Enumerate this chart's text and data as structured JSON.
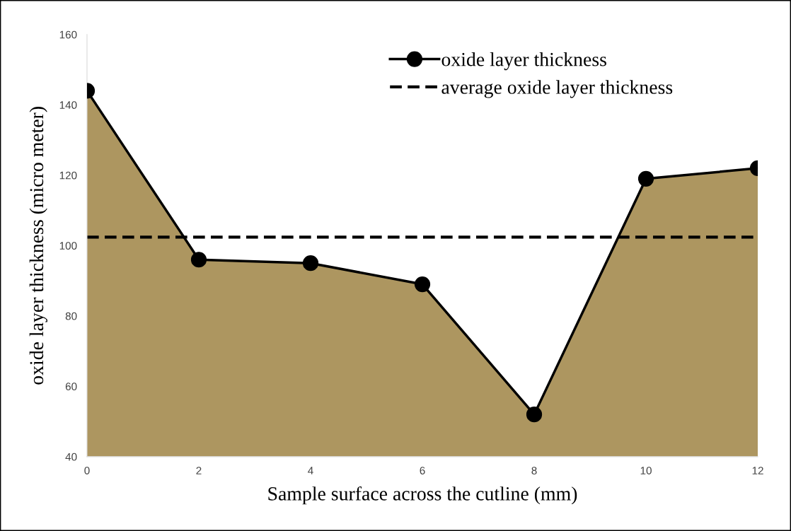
{
  "chart_data": {
    "type": "area",
    "xlabel": "Sample surface across the cutline (mm)",
    "ylabel": "oxide layer thickness (micro meter)",
    "x": [
      0,
      2,
      4,
      6,
      8,
      10,
      12
    ],
    "series": [
      {
        "name": "oxide layer thickness",
        "color": "#ad9660",
        "marker": "circle",
        "line_style": "solid",
        "values": [
          144,
          96,
          95,
          89,
          52,
          119,
          122
        ]
      }
    ],
    "ref_lines": [
      {
        "axis": "y",
        "value": 102.4,
        "label": "average oxide layer thickness",
        "color": "#000000",
        "line_style": "dashed"
      }
    ],
    "xlim": [
      0,
      12
    ],
    "xticks": [
      0,
      2,
      4,
      6,
      8,
      10,
      12
    ],
    "ylim": [
      40,
      160
    ],
    "yticks": [
      40,
      60,
      80,
      100,
      120,
      140,
      160
    ],
    "grid": false,
    "legend": "top right"
  }
}
